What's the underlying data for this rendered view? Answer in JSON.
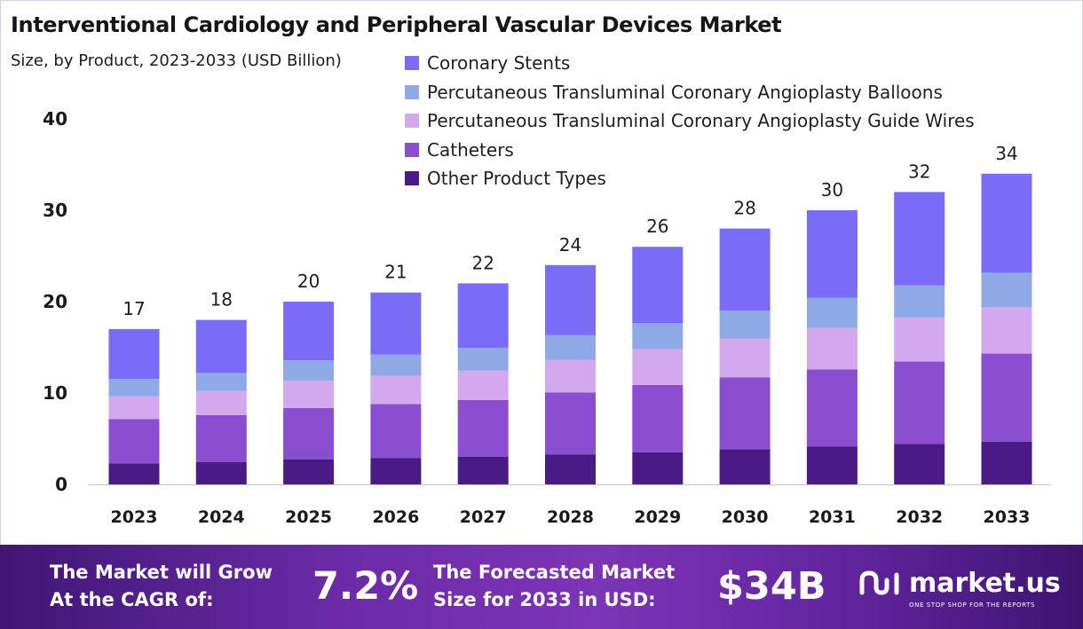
{
  "header": {
    "title": "Interventional Cardiology and Peripheral Vascular Devices Market",
    "subtitle": "Size, by Product, 2023-2033 (USD Billion)"
  },
  "colors": {
    "coronary_stents": "#7a6cf7",
    "balloons": "#8fa9e6",
    "guide_wires": "#d4a8ef",
    "catheters": "#8c4ed1",
    "other": "#4a1a87",
    "footer_start": "#3f1675",
    "footer_end": "#7d34b7"
  },
  "chart_data": {
    "type": "bar",
    "stacked": true,
    "title": "Interventional Cardiology and Peripheral Vascular Devices Market",
    "subtitle": "Size, by Product, 2023-2033 (USD Billion)",
    "xlabel": "",
    "ylabel": "",
    "ylim": [
      0,
      40
    ],
    "yticks": [
      0,
      10,
      20,
      30,
      40
    ],
    "grid": false,
    "legend_position": "top-right",
    "categories": [
      "2023",
      "2024",
      "2025",
      "2026",
      "2027",
      "2028",
      "2029",
      "2030",
      "2031",
      "2032",
      "2033"
    ],
    "totals": [
      17,
      18,
      20,
      21,
      22,
      24,
      26,
      28,
      30,
      32,
      34
    ],
    "series": [
      {
        "name": "Other Product Types",
        "values": [
          2.3,
          2.5,
          2.7,
          2.9,
          3.1,
          3.3,
          3.5,
          3.8,
          4.1,
          4.4,
          4.7
        ]
      },
      {
        "name": "Catheters",
        "values": [
          4.9,
          5.2,
          5.5,
          5.9,
          6.3,
          6.8,
          7.3,
          7.8,
          8.4,
          9.0,
          9.7
        ]
      },
      {
        "name": "Percutaneous Transluminal Coronary Angioplasty Guide Wires",
        "values": [
          2.5,
          2.7,
          2.9,
          3.1,
          3.3,
          3.6,
          3.9,
          4.2,
          4.5,
          4.8,
          5.1
        ]
      },
      {
        "name": "Percutaneous Transluminal Coronary Angioplasty Balloons",
        "values": [
          1.9,
          2.0,
          2.2,
          2.3,
          2.5,
          2.7,
          2.8,
          3.0,
          3.3,
          3.5,
          3.8
        ]
      },
      {
        "name": "Coronary Stents",
        "values": [
          5.5,
          5.9,
          6.3,
          6.8,
          7.2,
          7.7,
          8.3,
          8.9,
          9.5,
          10.2,
          10.9
        ]
      }
    ],
    "legend_order": [
      "Coronary Stents",
      "Percutaneous Transluminal Coronary Angioplasty Balloons",
      "Percutaneous Transluminal Coronary Angioplasty Guide Wires",
      "Catheters",
      "Other Product Types"
    ]
  },
  "footer": {
    "cagr_label": "The Market will Grow\nAt the CAGR of:",
    "cagr_value": "7.2%",
    "forecast_label": "The Forecasted Market\nSize for 2033 in USD:",
    "forecast_value": "$34B",
    "brand_name": "market.us",
    "brand_tagline": "ONE STOP SHOP FOR THE REPORTS"
  }
}
